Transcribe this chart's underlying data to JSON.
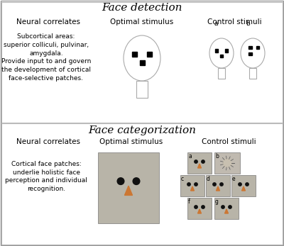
{
  "title1": "Face detection",
  "title2": "Face categorization",
  "col1_header": "Neural correlates",
  "col2_header": "Optimal stimulus",
  "col3_header": "Control stimuli",
  "text1": "Subcortical areas:\nsuperior colliculi, pulvinar,\namygdala.\nProvide input to and govern\nthe development of cortical\nface-selective patches.",
  "text2": "Cortical face patches:\nunderlie holistic face\nperception and individual\nrecognition.",
  "title_fontsize": 11,
  "header_fontsize": 7.5,
  "body_fontsize": 6.5
}
